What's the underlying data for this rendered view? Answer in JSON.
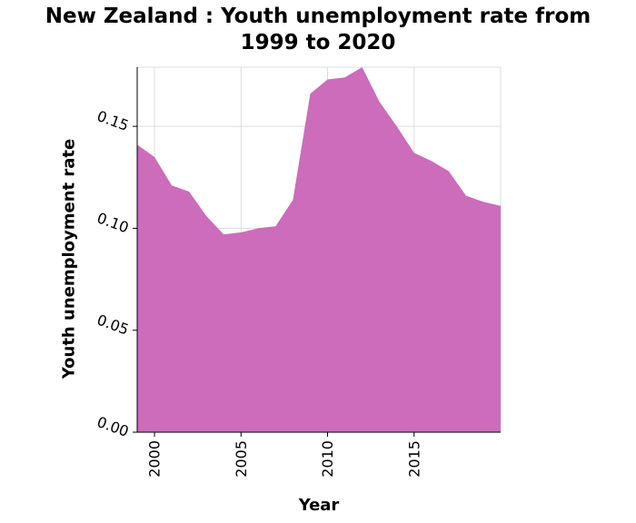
{
  "chart_data": {
    "type": "area",
    "title_line1": "New Zealand : Youth unemployment rate from",
    "title_line2": "1999 to 2020",
    "xlabel": "Year",
    "ylabel": "Youth unemployment rate",
    "x": [
      1999,
      2000,
      2001,
      2002,
      2003,
      2004,
      2005,
      2006,
      2007,
      2008,
      2009,
      2010,
      2011,
      2012,
      2013,
      2014,
      2015,
      2016,
      2017,
      2018,
      2019,
      2020
    ],
    "series": [
      {
        "values": [
          0.141,
          0.135,
          0.121,
          0.118,
          0.106,
          0.097,
          0.098,
          0.1,
          0.101,
          0.114,
          0.166,
          0.173,
          0.174,
          0.179,
          0.162,
          0.15,
          0.137,
          0.133,
          0.128,
          0.116,
          0.113,
          0.111
        ]
      }
    ],
    "xlim": [
      1999,
      2020
    ],
    "ylim": [
      0,
      0.179
    ],
    "xticks": [
      2000,
      2005,
      2010,
      2015
    ],
    "xtick_labels": [
      "2000",
      "2005",
      "2010",
      "2015"
    ],
    "yticks": [
      0,
      0.05,
      0.1,
      0.15
    ],
    "ytick_labels": [
      "0.00",
      "0.05",
      "0.10",
      "0.15"
    ],
    "grid": true,
    "fill_color": "#cc6cbb"
  }
}
